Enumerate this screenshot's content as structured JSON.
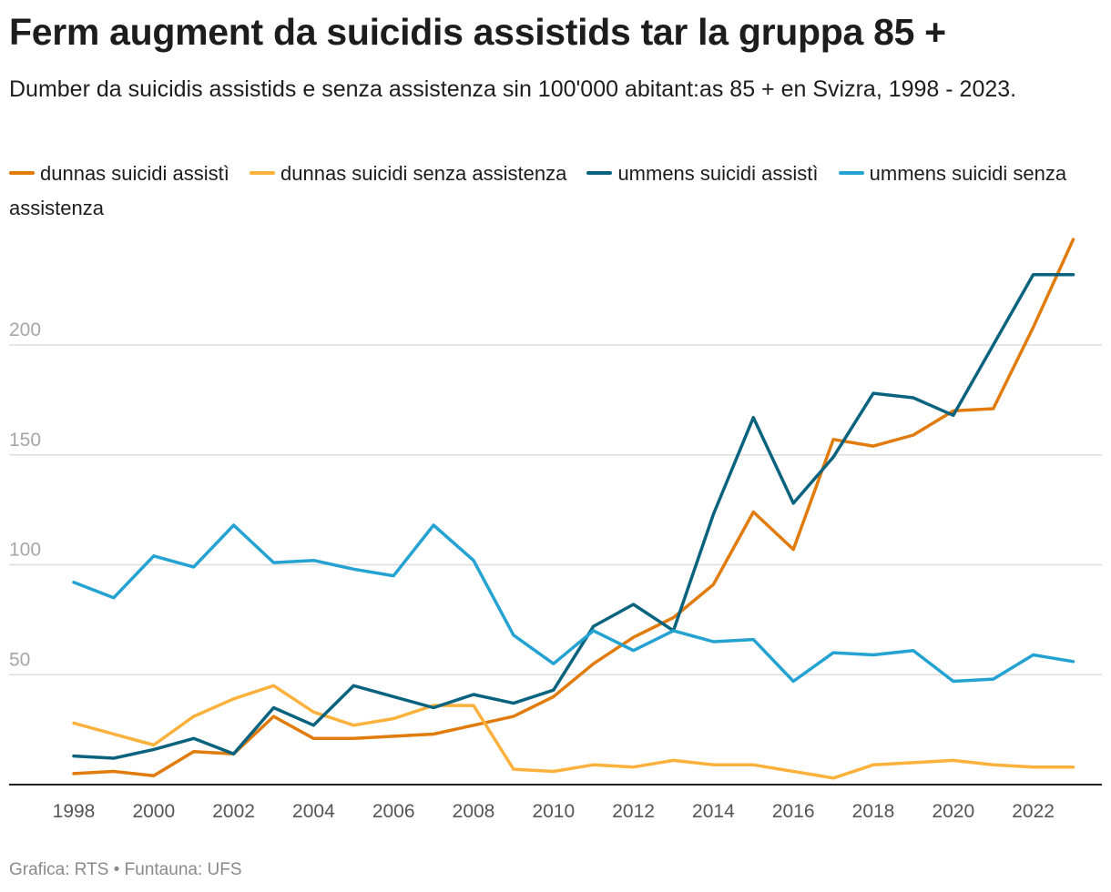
{
  "chart_data": {
    "type": "line",
    "title": "Ferm augment da suicidis assistids tar la gruppa 85 +",
    "subtitle": "Dumber da suicidis assistids e senza assistenza sin 100'000 abitant:as 85 + en Svizra, 1998 - 2023.",
    "x": [
      1998,
      1999,
      2000,
      2001,
      2002,
      2003,
      2004,
      2005,
      2006,
      2007,
      2008,
      2009,
      2010,
      2011,
      2012,
      2013,
      2014,
      2015,
      2016,
      2017,
      2018,
      2019,
      2020,
      2021,
      2022,
      2023
    ],
    "x_ticks": [
      "1998",
      "2000",
      "2002",
      "2004",
      "2006",
      "2008",
      "2010",
      "2012",
      "2014",
      "2016",
      "2018",
      "2020",
      "2022"
    ],
    "y_ticks": [
      "50",
      "100",
      "150",
      "200"
    ],
    "ylim": [
      0,
      260
    ],
    "grid": true,
    "series": [
      {
        "name": "dunnas suicidi assistì",
        "color": "#e07b0c",
        "values": [
          5,
          6,
          4,
          15,
          14,
          31,
          21,
          21,
          22,
          23,
          27,
          31,
          40,
          55,
          67,
          76,
          91,
          124,
          107,
          157,
          154,
          159,
          170,
          171,
          208,
          248
        ]
      },
      {
        "name": "dunnas suicidi senza assistenza",
        "color": "#fbb13c",
        "values": [
          28,
          23,
          18,
          31,
          39,
          45,
          33,
          27,
          30,
          36,
          36,
          7,
          6,
          9,
          8,
          11,
          9,
          9,
          6,
          3,
          9,
          10,
          11,
          9,
          8,
          8
        ]
      },
      {
        "name": "ummens suicidi assistì",
        "color": "#09637e",
        "values": [
          13,
          12,
          16,
          21,
          14,
          35,
          27,
          45,
          40,
          35,
          41,
          37,
          43,
          72,
          82,
          70,
          123,
          167,
          128,
          149,
          178,
          176,
          168,
          200,
          232,
          232
        ]
      },
      {
        "name": "ummens suicidi senza assistenza",
        "color": "#24a2d2",
        "values": [
          92,
          85,
          104,
          99,
          118,
          101,
          102,
          98,
          95,
          118,
          102,
          68,
          55,
          70,
          61,
          70,
          65,
          66,
          47,
          60,
          59,
          61,
          47,
          48,
          59,
          56
        ]
      }
    ],
    "footer": "Grafica: RTS • Funtauna: UFS"
  }
}
